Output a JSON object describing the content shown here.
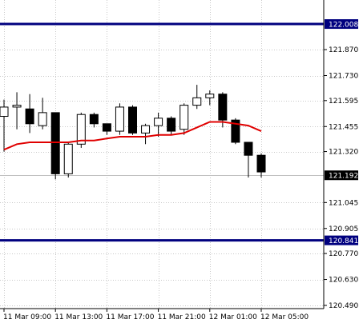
{
  "chart_data": {
    "type": "candlestick",
    "ylim": [
      120.49,
      122.06
    ],
    "y_ticks": [
      "121.870",
      "121.730",
      "121.595",
      "121.455",
      "121.320",
      "121.045",
      "120.905",
      "120.770",
      "120.630",
      "120.490"
    ],
    "x_labels": [
      "11 Mar 09:00",
      "11 Mar 13:00",
      "11 Mar 17:00",
      "11 Mar 21:00",
      "12 Mar 01:00",
      "12 Mar 05:00"
    ],
    "x_label_index": [
      0,
      4,
      8,
      12,
      16,
      20
    ],
    "candles": [
      {
        "o": 121.51,
        "h": 121.6,
        "l": 121.32,
        "c": 121.56
      },
      {
        "o": 121.56,
        "h": 121.64,
        "l": 121.44,
        "c": 121.57
      },
      {
        "o": 121.55,
        "h": 121.63,
        "l": 121.42,
        "c": 121.47
      },
      {
        "o": 121.46,
        "h": 121.61,
        "l": 121.44,
        "c": 121.53
      },
      {
        "o": 121.53,
        "h": 121.53,
        "l": 121.17,
        "c": 121.2
      },
      {
        "o": 121.2,
        "h": 121.37,
        "l": 121.18,
        "c": 121.36
      },
      {
        "o": 121.36,
        "h": 121.53,
        "l": 121.34,
        "c": 121.52
      },
      {
        "o": 121.52,
        "h": 121.53,
        "l": 121.45,
        "c": 121.47
      },
      {
        "o": 121.47,
        "h": 121.47,
        "l": 121.41,
        "c": 121.43
      },
      {
        "o": 121.43,
        "h": 121.58,
        "l": 121.41,
        "c": 121.56
      },
      {
        "o": 121.56,
        "h": 121.57,
        "l": 121.41,
        "c": 121.42
      },
      {
        "o": 121.42,
        "h": 121.47,
        "l": 121.36,
        "c": 121.46
      },
      {
        "o": 121.46,
        "h": 121.53,
        "l": 121.4,
        "c": 121.5
      },
      {
        "o": 121.5,
        "h": 121.51,
        "l": 121.41,
        "c": 121.43
      },
      {
        "o": 121.44,
        "h": 121.58,
        "l": 121.41,
        "c": 121.57
      },
      {
        "o": 121.57,
        "h": 121.68,
        "l": 121.55,
        "c": 121.61
      },
      {
        "o": 121.61,
        "h": 121.65,
        "l": 121.57,
        "c": 121.63
      },
      {
        "o": 121.63,
        "h": 121.64,
        "l": 121.45,
        "c": 121.49
      },
      {
        "o": 121.49,
        "h": 121.5,
        "l": 121.36,
        "c": 121.37
      },
      {
        "o": 121.37,
        "h": 121.37,
        "l": 121.18,
        "c": 121.3
      },
      {
        "o": 121.3,
        "h": 121.31,
        "l": 121.18,
        "c": 121.21
      }
    ],
    "moving_average": {
      "color": "#e00000",
      "values": [
        121.33,
        121.36,
        121.37,
        121.37,
        121.37,
        121.37,
        121.38,
        121.38,
        121.39,
        121.4,
        121.4,
        121.4,
        121.41,
        121.41,
        121.42,
        121.45,
        121.48,
        121.48,
        121.47,
        121.46,
        121.43
      ]
    },
    "horizontal_lines": [
      {
        "value": 122.008,
        "label": "122.008",
        "color": "#00007f"
      },
      {
        "value": 120.841,
        "label": "120.841",
        "color": "#00007f"
      }
    ],
    "current_price": {
      "value": 121.192,
      "label": "121.192",
      "color": "#c0c0c0"
    },
    "grid": true
  }
}
